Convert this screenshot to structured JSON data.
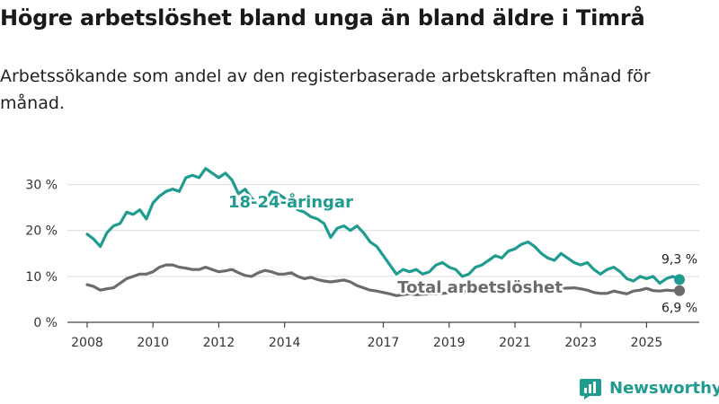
{
  "title": "Högre arbetslöshet bland unga än bland äldre i Timrå",
  "subtitle": "Arbetssökande som andel av den registerbaserade arbetskraften månad för månad.",
  "brand": {
    "name": "Newsworthy",
    "icon": "bar-chart-logo-icon"
  },
  "chart_data": {
    "type": "line",
    "title": "Högre arbetslöshet bland unga än bland äldre i Timrå",
    "xlabel": "",
    "ylabel": "",
    "ylim": [
      0,
      35
    ],
    "xlim": [
      2007.4,
      2026.6
    ],
    "y_ticks": [
      0,
      10,
      20,
      30
    ],
    "y_tick_labels": [
      "0 %",
      "10 %",
      "20 %",
      "30 %"
    ],
    "x_ticks": [
      2008,
      2010,
      2012,
      2014,
      2017,
      2019,
      2021,
      2023,
      2025
    ],
    "x_tick_labels": [
      "2008",
      "2010",
      "2012",
      "2014",
      "2017",
      "2019",
      "2021",
      "2023",
      "2025"
    ],
    "grid": true,
    "series": [
      {
        "name": "18-24-åringar",
        "color": "#1f9b8f",
        "label": "18-24-åringar",
        "end_label": "9,3 %",
        "points": [
          [
            2008.0,
            19.2
          ],
          [
            2008.2,
            18.1
          ],
          [
            2008.4,
            16.5
          ],
          [
            2008.6,
            19.5
          ],
          [
            2008.8,
            21.0
          ],
          [
            2009.0,
            21.5
          ],
          [
            2009.2,
            24.0
          ],
          [
            2009.4,
            23.5
          ],
          [
            2009.6,
            24.5
          ],
          [
            2009.8,
            22.5
          ],
          [
            2010.0,
            26.0
          ],
          [
            2010.2,
            27.5
          ],
          [
            2010.4,
            28.5
          ],
          [
            2010.6,
            29.0
          ],
          [
            2010.8,
            28.5
          ],
          [
            2011.0,
            31.5
          ],
          [
            2011.2,
            32.0
          ],
          [
            2011.4,
            31.5
          ],
          [
            2011.6,
            33.5
          ],
          [
            2011.8,
            32.5
          ],
          [
            2012.0,
            31.5
          ],
          [
            2012.2,
            32.5
          ],
          [
            2012.4,
            31.0
          ],
          [
            2012.6,
            28.0
          ],
          [
            2012.8,
            29.0
          ],
          [
            2013.0,
            27.0
          ],
          [
            2013.3,
            25.0
          ],
          [
            2013.6,
            28.5
          ],
          [
            2013.8,
            28.0
          ],
          [
            2014.0,
            27.0
          ],
          [
            2014.2,
            25.5
          ],
          [
            2014.4,
            24.5
          ],
          [
            2014.6,
            24.0
          ],
          [
            2014.8,
            23.0
          ],
          [
            2015.0,
            22.5
          ],
          [
            2015.2,
            21.5
          ],
          [
            2015.4,
            18.5
          ],
          [
            2015.6,
            20.5
          ],
          [
            2015.8,
            21.0
          ],
          [
            2016.0,
            20.0
          ],
          [
            2016.2,
            21.0
          ],
          [
            2016.4,
            19.5
          ],
          [
            2016.6,
            17.5
          ],
          [
            2016.8,
            16.5
          ],
          [
            2017.0,
            14.5
          ],
          [
            2017.2,
            12.5
          ],
          [
            2017.4,
            10.5
          ],
          [
            2017.6,
            11.5
          ],
          [
            2017.8,
            11.0
          ],
          [
            2018.0,
            11.5
          ],
          [
            2018.2,
            10.5
          ],
          [
            2018.4,
            11.0
          ],
          [
            2018.6,
            12.5
          ],
          [
            2018.8,
            13.0
          ],
          [
            2019.0,
            12.0
          ],
          [
            2019.2,
            11.5
          ],
          [
            2019.4,
            10.0
          ],
          [
            2019.6,
            10.5
          ],
          [
            2019.8,
            12.0
          ],
          [
            2020.0,
            12.5
          ],
          [
            2020.2,
            13.5
          ],
          [
            2020.4,
            14.5
          ],
          [
            2020.6,
            14.0
          ],
          [
            2020.8,
            15.5
          ],
          [
            2021.0,
            16.0
          ],
          [
            2021.2,
            17.0
          ],
          [
            2021.4,
            17.5
          ],
          [
            2021.6,
            16.5
          ],
          [
            2021.8,
            15.0
          ],
          [
            2022.0,
            14.0
          ],
          [
            2022.2,
            13.5
          ],
          [
            2022.4,
            15.0
          ],
          [
            2022.6,
            14.0
          ],
          [
            2022.8,
            13.0
          ],
          [
            2023.0,
            12.5
          ],
          [
            2023.2,
            13.0
          ],
          [
            2023.4,
            11.5
          ],
          [
            2023.6,
            10.5
          ],
          [
            2023.8,
            11.5
          ],
          [
            2024.0,
            12.0
          ],
          [
            2024.2,
            11.0
          ],
          [
            2024.4,
            9.5
          ],
          [
            2024.6,
            9.0
          ],
          [
            2024.8,
            10.0
          ],
          [
            2025.0,
            9.5
          ],
          [
            2025.2,
            10.0
          ],
          [
            2025.4,
            8.5
          ],
          [
            2025.6,
            9.5
          ],
          [
            2025.8,
            10.0
          ],
          [
            2026.0,
            9.3
          ]
        ]
      },
      {
        "name": "Total arbetslöshet",
        "color": "#6b6b6b",
        "label": "Total arbetslöshet",
        "end_label": "6,9 %",
        "points": [
          [
            2008.0,
            8.2
          ],
          [
            2008.2,
            7.8
          ],
          [
            2008.4,
            7.0
          ],
          [
            2008.6,
            7.3
          ],
          [
            2008.8,
            7.5
          ],
          [
            2009.0,
            8.5
          ],
          [
            2009.2,
            9.5
          ],
          [
            2009.4,
            10.0
          ],
          [
            2009.6,
            10.5
          ],
          [
            2009.8,
            10.5
          ],
          [
            2010.0,
            11.0
          ],
          [
            2010.2,
            12.0
          ],
          [
            2010.4,
            12.5
          ],
          [
            2010.6,
            12.5
          ],
          [
            2010.8,
            12.0
          ],
          [
            2011.0,
            11.8
          ],
          [
            2011.2,
            11.5
          ],
          [
            2011.4,
            11.5
          ],
          [
            2011.6,
            12.0
          ],
          [
            2011.8,
            11.5
          ],
          [
            2012.0,
            11.0
          ],
          [
            2012.2,
            11.2
          ],
          [
            2012.4,
            11.5
          ],
          [
            2012.6,
            10.8
          ],
          [
            2012.8,
            10.2
          ],
          [
            2013.0,
            10.0
          ],
          [
            2013.2,
            10.8
          ],
          [
            2013.4,
            11.3
          ],
          [
            2013.6,
            11.0
          ],
          [
            2013.8,
            10.5
          ],
          [
            2014.0,
            10.5
          ],
          [
            2014.2,
            10.8
          ],
          [
            2014.4,
            10.0
          ],
          [
            2014.6,
            9.5
          ],
          [
            2014.8,
            9.8
          ],
          [
            2015.0,
            9.3
          ],
          [
            2015.2,
            9.0
          ],
          [
            2015.4,
            8.8
          ],
          [
            2015.6,
            9.0
          ],
          [
            2015.8,
            9.2
          ],
          [
            2016.0,
            8.8
          ],
          [
            2016.2,
            8.0
          ],
          [
            2016.4,
            7.5
          ],
          [
            2016.6,
            7.0
          ],
          [
            2016.8,
            6.8
          ],
          [
            2017.0,
            6.5
          ],
          [
            2017.2,
            6.2
          ],
          [
            2017.4,
            5.8
          ],
          [
            2017.6,
            6.0
          ],
          [
            2017.8,
            6.2
          ],
          [
            2018.0,
            6.0
          ],
          [
            2018.4,
            6.2
          ],
          [
            2018.8,
            6.3
          ],
          [
            2019.2,
            6.5
          ],
          [
            2019.6,
            6.8
          ],
          [
            2020.0,
            7.5
          ],
          [
            2020.4,
            8.0
          ],
          [
            2020.8,
            8.2
          ],
          [
            2021.2,
            8.0
          ],
          [
            2021.6,
            7.8
          ],
          [
            2022.0,
            7.5
          ],
          [
            2022.4,
            7.4
          ],
          [
            2022.8,
            7.5
          ],
          [
            2023.0,
            7.3
          ],
          [
            2023.2,
            7.0
          ],
          [
            2023.4,
            6.5
          ],
          [
            2023.6,
            6.3
          ],
          [
            2023.8,
            6.3
          ],
          [
            2024.0,
            6.8
          ],
          [
            2024.2,
            6.5
          ],
          [
            2024.4,
            6.2
          ],
          [
            2024.6,
            6.8
          ],
          [
            2024.8,
            7.0
          ],
          [
            2025.0,
            7.4
          ],
          [
            2025.2,
            6.9
          ],
          [
            2025.4,
            6.8
          ],
          [
            2025.6,
            7.0
          ],
          [
            2025.8,
            6.9
          ],
          [
            2026.0,
            6.9
          ]
        ]
      }
    ]
  }
}
